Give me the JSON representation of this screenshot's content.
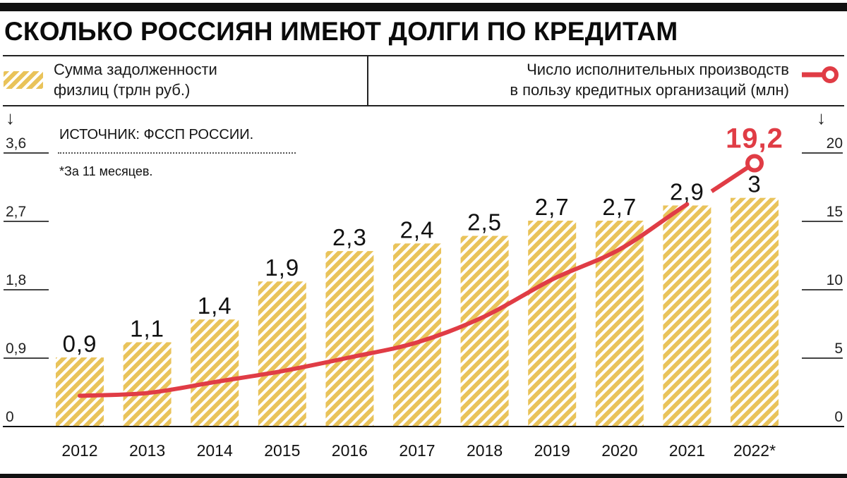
{
  "title": "СКОЛЬКО РОССИЯН ИМЕЮТ ДОЛГИ ПО КРЕДИТАМ",
  "legend": {
    "bars_label_line1": "Сумма задолженности",
    "bars_label_line2": "физлиц (трлн руб.)",
    "line_label_line1": "Число исполнительных производств",
    "line_label_line2": "в пользу кредитных организаций (млн)"
  },
  "notes": {
    "source": "ИСТОЧНИК: ФССП РОССИИ.",
    "footnote": "*За 11 месяцев."
  },
  "left_axis": {
    "arrow": "↓",
    "ticks": [
      "0",
      "0,9",
      "1,8",
      "2,7",
      "3,6"
    ]
  },
  "right_axis": {
    "arrow": "↓",
    "ticks": [
      "0",
      "5",
      "10",
      "15",
      "20"
    ]
  },
  "colors": {
    "bar": "#e9c35a",
    "line": "#e03c45",
    "text": "#111111"
  },
  "highlight_label": "19,2",
  "chart_data": {
    "type": "bar",
    "title": "СКОЛЬКО РОССИЯН ИМЕЮТ ДОЛГИ ПО КРЕДИТАМ",
    "categories": [
      "2012",
      "2013",
      "2014",
      "2015",
      "2016",
      "2017",
      "2018",
      "2019",
      "2020",
      "2021",
      "2022*"
    ],
    "series": [
      {
        "name": "Сумма задолженности физлиц (трлн руб.)",
        "type": "bar",
        "axis": "left",
        "values": [
          0.9,
          1.1,
          1.4,
          1.9,
          2.3,
          2.4,
          2.5,
          2.7,
          2.7,
          2.9,
          3.0
        ],
        "labels": [
          "0,9",
          "1,1",
          "1,4",
          "1,9",
          "2,3",
          "2,4",
          "2,5",
          "2,7",
          "2,7",
          "2,9",
          "3"
        ]
      },
      {
        "name": "Число исполнительных производств в пользу кредитных организаций (млн)",
        "type": "line",
        "axis": "right",
        "values": [
          2.2,
          2.4,
          3.2,
          4.0,
          5.0,
          6.1,
          8.0,
          10.7,
          12.9,
          16.2,
          19.2
        ],
        "labels": [
          "",
          "",
          "",
          "",
          "",
          "",
          "",
          "",
          "",
          "",
          "19,2"
        ]
      }
    ],
    "xlabel": "",
    "ylabel_left": "трлн руб.",
    "ylabel_right": "млн",
    "ylim_left": [
      0,
      3.6
    ],
    "ylim_right": [
      0,
      20
    ],
    "yticks_left": [
      0,
      0.9,
      1.8,
      2.7,
      3.6
    ],
    "yticks_right": [
      0,
      5,
      10,
      15,
      20
    ],
    "grid": false,
    "legend_position": "top",
    "annotations": [
      "ИСТОЧНИК: ФССП РОССИИ.",
      "*За 11 месяцев."
    ]
  }
}
